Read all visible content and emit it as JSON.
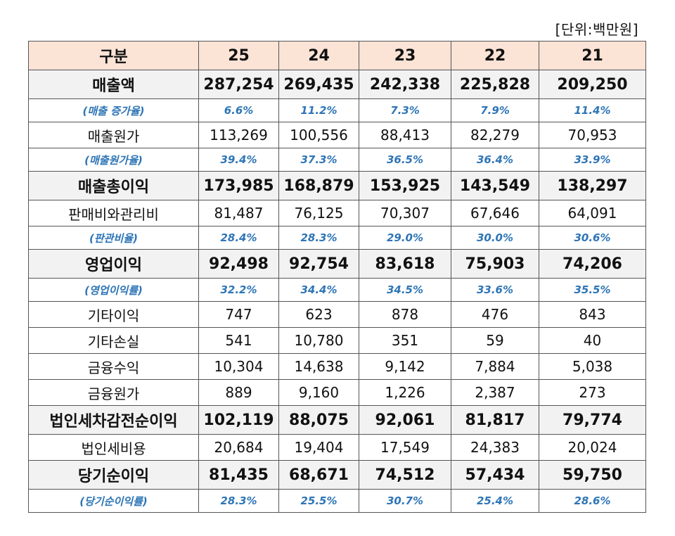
{
  "unit_label": "[단위:백만원]",
  "header": [
    "구분",
    "25",
    "24",
    "23",
    "22",
    "21"
  ],
  "rows": [
    {
      "type": "major",
      "label": "매출액",
      "values": [
        "287,254",
        "269,435",
        "242,338",
        "225,828",
        "209,250"
      ]
    },
    {
      "type": "pct",
      "label": "(매출 증가율)",
      "values": [
        "6.6%",
        "11.2%",
        "7.3%",
        "7.9%",
        "11.4%"
      ]
    },
    {
      "type": "minor",
      "label": "매출원가",
      "values": [
        "113,269",
        "100,556",
        "88,413",
        "82,279",
        "70,953"
      ]
    },
    {
      "type": "pct",
      "label": "(매출원가율)",
      "values": [
        "39.4%",
        "37.3%",
        "36.5%",
        "36.4%",
        "33.9%"
      ]
    },
    {
      "type": "major",
      "label": "매출총이익",
      "values": [
        "173,985",
        "168,879",
        "153,925",
        "143,549",
        "138,297"
      ]
    },
    {
      "type": "minor",
      "label": "판매비와관리비",
      "values": [
        "81,487",
        "76,125",
        "70,307",
        "67,646",
        "64,091"
      ]
    },
    {
      "type": "pct",
      "label": "(판관비율)",
      "values": [
        "28.4%",
        "28.3%",
        "29.0%",
        "30.0%",
        "30.6%"
      ]
    },
    {
      "type": "major",
      "label": "영업이익",
      "values": [
        "92,498",
        "92,754",
        "83,618",
        "75,903",
        "74,206"
      ]
    },
    {
      "type": "pct",
      "label": "(영업이익률)",
      "values": [
        "32.2%",
        "34.4%",
        "34.5%",
        "33.6%",
        "35.5%"
      ]
    },
    {
      "type": "minor",
      "label": "기타이익",
      "values": [
        "747",
        "623",
        "878",
        "476",
        "843"
      ]
    },
    {
      "type": "minor",
      "label": "기타손실",
      "values": [
        "541",
        "10,780",
        "351",
        "59",
        "40"
      ]
    },
    {
      "type": "minor",
      "label": "금융수익",
      "values": [
        "10,304",
        "14,638",
        "9,142",
        "7,884",
        "5,038"
      ]
    },
    {
      "type": "minor",
      "label": "금융원가",
      "values": [
        "889",
        "9,160",
        "1,226",
        "2,387",
        "273"
      ]
    },
    {
      "type": "major",
      "label": "법인세차감전순이익",
      "values": [
        "102,119",
        "88,075",
        "92,061",
        "81,817",
        "79,774"
      ]
    },
    {
      "type": "minor",
      "label": "법인세비용",
      "values": [
        "20,684",
        "19,404",
        "17,549",
        "24,383",
        "20,024"
      ]
    },
    {
      "type": "major",
      "label": "당기순이익",
      "values": [
        "81,435",
        "68,671",
        "74,512",
        "57,434",
        "59,750"
      ]
    },
    {
      "type": "pct",
      "label": "(당기순이익률)",
      "values": [
        "28.3%",
        "25.5%",
        "30.7%",
        "25.4%",
        "28.6%"
      ]
    }
  ]
}
